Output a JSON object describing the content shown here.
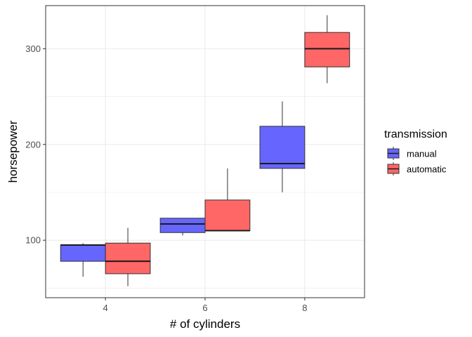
{
  "chart_data": {
    "type": "box",
    "xlabel": "# of cylinders",
    "ylabel": "horsepower",
    "categories": [
      "4",
      "6",
      "8"
    ],
    "ylim": [
      40,
      345
    ],
    "yticks": [
      100,
      200,
      300
    ],
    "grid": true,
    "legend": {
      "title": "transmission",
      "position": "right"
    },
    "series": [
      {
        "name": "manual",
        "color": "#6666ff",
        "boxes": [
          {
            "category": "4",
            "min": 62,
            "q1": 78,
            "median": 95,
            "q3": 95,
            "max": 97
          },
          {
            "category": "6",
            "min": 105,
            "q1": 108,
            "median": 117,
            "q3": 123,
            "max": 123
          },
          {
            "category": "8",
            "min": 150,
            "q1": 175,
            "median": 180,
            "q3": 219,
            "max": 245
          }
        ]
      },
      {
        "name": "automatic",
        "color": "#ff6666",
        "boxes": [
          {
            "category": "4",
            "min": 52,
            "q1": 65,
            "median": 78,
            "q3": 97,
            "max": 113
          },
          {
            "category": "6",
            "min": 110,
            "q1": 110,
            "median": 110,
            "q3": 142,
            "max": 175
          },
          {
            "category": "8",
            "min": 264,
            "q1": 281,
            "median": 300,
            "q3": 317,
            "max": 335
          }
        ]
      }
    ]
  }
}
